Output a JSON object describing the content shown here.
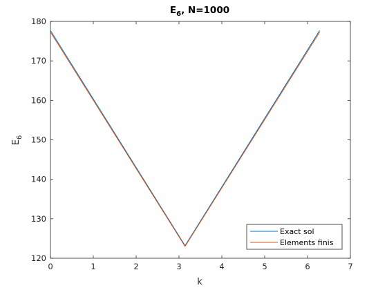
{
  "chart_data": {
    "type": "line",
    "title": {
      "main": "E",
      "sub": "6",
      "rest": ", N=1000"
    },
    "xlabel": "k",
    "ylabel": {
      "main": "E",
      "sub": "6"
    },
    "xlim": [
      0,
      7
    ],
    "ylim": [
      120,
      180
    ],
    "xticks": [
      0,
      1,
      2,
      3,
      4,
      5,
      6,
      7
    ],
    "yticks": [
      120,
      130,
      140,
      150,
      160,
      170,
      180
    ],
    "grid": false,
    "legend_position": "bottom-right",
    "series": [
      {
        "name": "Exact sol",
        "color": "#0072BD",
        "x": [
          0,
          3.14159,
          6.28319
        ],
        "y": [
          177.7,
          123.2,
          177.7
        ]
      },
      {
        "name": "Elements finis",
        "color": "#D95319",
        "x": [
          0,
          3.14159,
          6.28319
        ],
        "y": [
          177.3,
          123.0,
          177.3
        ]
      }
    ]
  }
}
